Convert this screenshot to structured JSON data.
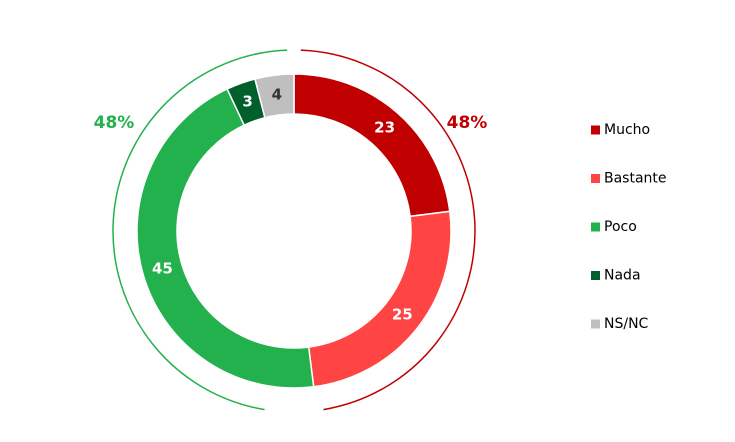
{
  "chart_data": {
    "type": "donut",
    "categories": [
      "Mucho",
      "Bastante",
      "Poco",
      "Nada",
      "NS/NC"
    ],
    "values": [
      23,
      25,
      45,
      3,
      4
    ],
    "colors": [
      "#c00000",
      "#ff4444",
      "#22b14c",
      "#00602b",
      "#bfbfbf"
    ],
    "annotations": [
      {
        "label": "48%",
        "value": 48,
        "color": "#c00000",
        "side": "right"
      },
      {
        "label": "48%",
        "value": 48,
        "color": "#22b14c",
        "side": "left"
      }
    ],
    "legend": "right"
  }
}
